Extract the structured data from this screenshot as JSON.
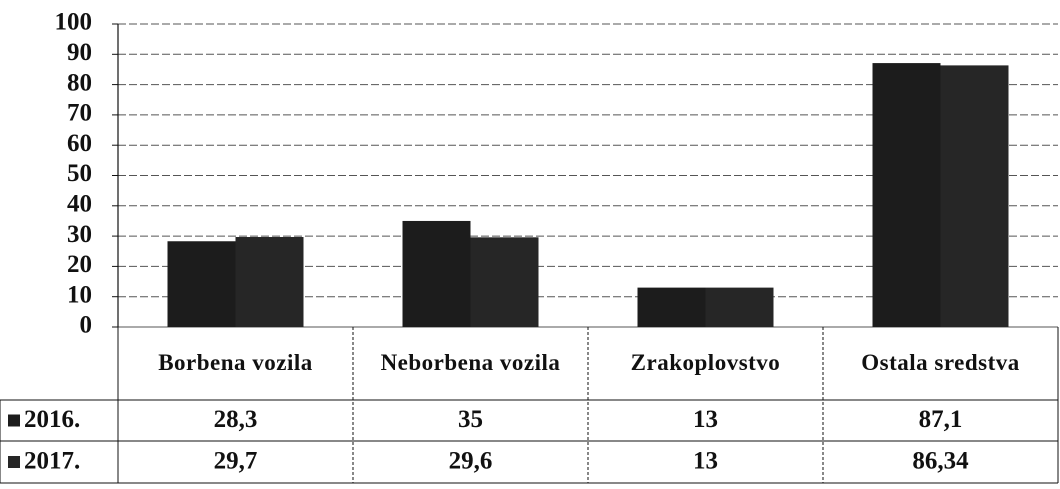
{
  "chart_data": {
    "type": "bar",
    "categories": [
      "Borbena vozila",
      "Neborbena vozila",
      "Zrakoplovstvo",
      "Ostala sredstva"
    ],
    "series": [
      {
        "name": "2016.",
        "color": "#1c1c1c",
        "values": [
          28.3,
          35,
          13,
          87.1
        ],
        "value_labels": [
          "28,3",
          "35",
          "13",
          "87,1"
        ]
      },
      {
        "name": "2017.",
        "color": "#262626",
        "values": [
          29.7,
          29.6,
          13,
          86.34
        ],
        "value_labels": [
          "29,7",
          "29,6",
          "13",
          "86,34"
        ]
      }
    ],
    "ylim": [
      0,
      100
    ],
    "yticks": [
      0,
      10,
      20,
      30,
      40,
      50,
      60,
      70,
      80,
      90,
      100
    ],
    "grid": true
  }
}
